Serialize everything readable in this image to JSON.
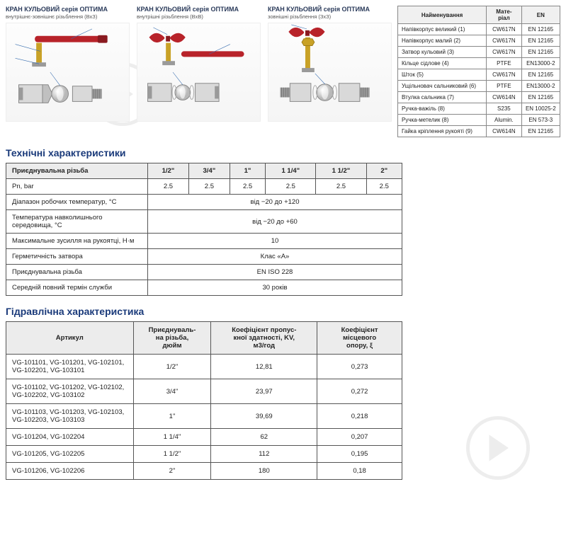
{
  "diagrams": [
    {
      "title": "КРАН КУЛЬОВИЙ серія ОПТИМА",
      "subtitle": "внутрішнє-зовнішнє різьблення (ВхЗ)"
    },
    {
      "title": "КРАН КУЛЬОВИЙ серія ОПТИМА",
      "subtitle": "внутрішні різьблення (ВхВ)"
    },
    {
      "title": "КРАН КУЛЬОВИЙ серія ОПТИМА",
      "subtitle": "зовнішні різьблення (ЗхЗ)"
    }
  ],
  "materials": {
    "headers": [
      "Найменування",
      "Мате-\nріал",
      "EN"
    ],
    "rows": [
      [
        "Напівкорпус великий (1)",
        "CW617N",
        "EN 12165"
      ],
      [
        "Напівкорпус малий (2)",
        "CW617N",
        "EN 12165"
      ],
      [
        "Затвор кульовий (3)",
        "CW617N",
        "EN 12165"
      ],
      [
        "Кільце сідлове (4)",
        "PTFE",
        "EN13000-2"
      ],
      [
        "Шток (5)",
        "CW617N",
        "EN 12165"
      ],
      [
        "Ущільновач сальниковий (6)",
        "PTFE",
        "EN13000-2"
      ],
      [
        "Втулка сальника (7)",
        "CW614N",
        "EN 12165"
      ],
      [
        "Ручка-важіль (8)",
        "S235",
        "EN 10025-2"
      ],
      [
        "Ручка-метелик (8)",
        "Alumin.",
        "EN 573-3"
      ],
      [
        "Гайка кріплення рукояті (9)",
        "CW614N",
        "EN 12165"
      ]
    ],
    "col_widths": [
      "130px",
      "50px",
      "55px"
    ],
    "header_bg": "#f0f0f0",
    "border_color": "#888"
  },
  "tech_specs": {
    "title": "Технічні характеристики",
    "header_row": [
      "Приєднувальна різьба",
      "1/2\"",
      "3/4\"",
      "1\"",
      "1 1/4\"",
      "1 1/2\"",
      "2\""
    ],
    "rows": [
      {
        "label": "Pn, bar",
        "vals": [
          "2.5",
          "2.5",
          "2.5",
          "2.5",
          "2.5",
          "2.5"
        ],
        "span": false
      },
      {
        "label": "Діапазон робочих температур, °C",
        "vals": [
          "від −20 до +120"
        ],
        "span": true
      },
      {
        "label": "Температура навколишнього середовища, °C",
        "vals": [
          "від −20 до +60"
        ],
        "span": true
      },
      {
        "label": "Максимальне зусилля на рукоятці, Н·м",
        "vals": [
          "10"
        ],
        "span": true
      },
      {
        "label": "Герметичність затвора",
        "vals": [
          "Клас «А»"
        ],
        "span": true
      },
      {
        "label": "Приєднувальна різьба",
        "vals": [
          "EN ISO 228"
        ],
        "span": true
      },
      {
        "label": "Середній повний термін служби",
        "vals": [
          "30 років"
        ],
        "span": true
      }
    ],
    "header_bg": "#ececec",
    "title_color": "#1a3a7a"
  },
  "hydro": {
    "title": "Гідравлічна характеристика",
    "headers": [
      "Артикул",
      "Приєднуваль-\nна різьба,\nдюйм",
      "Коефіцієнт пропус-\nкної здатності, KV,\nм3/год",
      "Коефіцієнт\nмісцевого\nопору, ξ"
    ],
    "rows": [
      [
        "VG-101101, VG-101201, VG-102101, VG-102201, VG-103101",
        "1/2\"",
        "12,81",
        "0,273"
      ],
      [
        "VG-101102, VG-101202, VG-102102, VG-102202, VG-103102",
        "3/4\"",
        "23,97",
        "0,272"
      ],
      [
        "VG-101103, VG-101203, VG-102103, VG-102203, VG-103103",
        "1\"",
        "39,69",
        "0,218"
      ],
      [
        "VG-101204, VG-102204",
        "1 1/4\"",
        "62",
        "0,207"
      ],
      [
        "VG-101205, VG-102205",
        "1 1/2\"",
        "112",
        "0,195"
      ],
      [
        "VG-101206, VG-102206",
        "2\"",
        "180",
        "0,18"
      ]
    ],
    "col_widths": [
      "180px",
      "110px",
      "150px",
      "120px"
    ],
    "title_color": "#1a3a7a"
  },
  "colors": {
    "handle_red": "#b8232a",
    "brass": "#c9a227",
    "body_light": "#d9d9d9",
    "body_dark": "#9a9a9a",
    "leader_blue": "#3a6fb0",
    "watermark": "#dddddd"
  }
}
